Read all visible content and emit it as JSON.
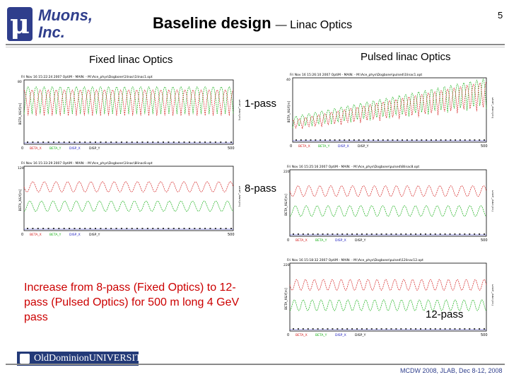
{
  "logo": {
    "symbol": "μ",
    "line1": "Muons,",
    "line2": "Inc."
  },
  "title": {
    "main": "Baseline design",
    "sub": "— Linac Optics"
  },
  "page_number": "5",
  "column_labels": {
    "fixed": "Fixed linac Optics",
    "pulsed": "Pulsed linac Optics"
  },
  "pass_labels": {
    "p1": "1-pass",
    "p8": "8-pass",
    "p12": "12-pass"
  },
  "note": "Increase from 8-pass (Fixed Optics) to 12-pass (Pulsed Optics) for 500 m long 4 GeV pass",
  "university": "OldDominionUNIVERSITY",
  "footer": "MCDW 2008, JLAB, Dec 8-12, 2008",
  "colors": {
    "red": "#d42020",
    "green": "#18b018",
    "blue": "#2020c0",
    "brand": "#2f3e8c"
  },
  "plots": {
    "fixed_1pass": {
      "header": "Fri Nov 16 15:22:24 2007   OptiM - MAIN: - M:\\Ace_phys\\Dogbone\\1linac\\1linac1.opt",
      "ylabel_left": "BETA_X&Y[m]",
      "ylabel_right": "DISP_X&Y[m]",
      "ymax": "80",
      "xmin": "0",
      "xmax": "500",
      "legend": [
        "BETA_X",
        "BETA_Y",
        "DISP_X",
        "DISP_Y"
      ]
    },
    "fixed_8pass": {
      "header": "Fri Nov 16 15:33:29 2007   OptiM - MAIN: - M:\\Ace_phys\\Dogbone\\1linac\\8linac8.opt",
      "ylabel_left": "BETA_X&Y[m]",
      "ylabel_right": "DISP_X&Y[m]",
      "ymax": "120",
      "xmin": "0",
      "xmax": "500",
      "legend": [
        "BETA_X",
        "BETA_Y",
        "DISP_X",
        "DISP_Y"
      ]
    },
    "pulsed_1pass": {
      "header": "Fri Nov 16 15:26:10 2007   OptiM - MAIN: - M:\\Ace_phys\\Dogbone\\pulsed\\1linac1.opt",
      "ylabel_left": "BETA_X&Y[m]",
      "ylabel_right": "DISP_X&Y[m]",
      "ymax": "40",
      "xmin": "0",
      "xmax": "500",
      "legend": [
        "BETA_X",
        "BETA_Y",
        "DISP_X",
        "DISP_Y"
      ]
    },
    "pulsed_8pass": {
      "header": "Fri Nov 16 15:25:16 2007   OptiM - MAIN: - M:\\Ace_phys\\Dogbone\\pulsed\\8linac8.opt",
      "ylabel_left": "BETA_X&Y[m]",
      "ylabel_right": "DISP_X&Y[m]",
      "ymax": "220",
      "xmin": "0",
      "xmax": "500",
      "legend": [
        "BETA_X",
        "BETA_Y",
        "DISP_X",
        "DISP_Y"
      ]
    },
    "pulsed_12pass": {
      "header": "Fri Nov 16 15:18:32 2007   OptiM - MAIN: - M:\\Ace_phys\\Dogbone\\pulsed\\12linac12.opt",
      "ylabel_left": "BETA_X&Y[m]",
      "ylabel_right": "DISP_X&Y[m]",
      "ymax": "220",
      "xmin": "0",
      "xmax": "500",
      "legend": [
        "BETA_X",
        "BETA_Y",
        "DISP_X",
        "DISP_Y"
      ]
    }
  }
}
